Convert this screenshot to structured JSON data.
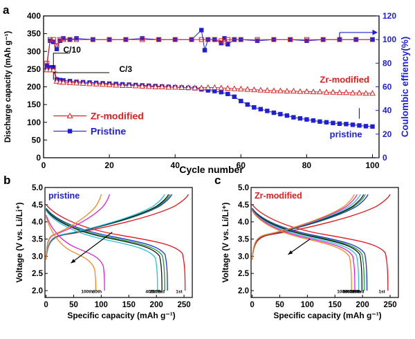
{
  "chart_data": [
    {
      "panel": "a",
      "type": "scatter",
      "xlabel": "Cycle number",
      "ylabel": "Discharge capacity (mAh g⁻¹)",
      "y2label": "Coulombic effiency(%)",
      "xlim": [
        0,
        102
      ],
      "ylim": [
        0,
        400
      ],
      "y2lim": [
        0,
        120
      ],
      "xticks": [
        0,
        20,
        40,
        60,
        80,
        100
      ],
      "yticks": [
        0,
        50,
        100,
        150,
        200,
        250,
        300,
        350,
        400
      ],
      "y2ticks": [
        0,
        20,
        40,
        60,
        80,
        100,
        120
      ],
      "legend_position": "lower-left",
      "legend": [
        {
          "label": "Zr-modified",
          "color": "#e02020",
          "marker": "open-triangle"
        },
        {
          "label": "Pristine",
          "color": "#1f1fd6",
          "marker": "filled-square"
        }
      ],
      "annotations": [
        "C/10",
        "C/3",
        "Zr-modified",
        "pristine"
      ],
      "series": [
        {
          "name": "Zr-modified",
          "kind": "discharge",
          "axis": "left",
          "color": "#e02020",
          "marker": "open-triangle",
          "x": [
            1,
            2,
            3,
            4,
            5,
            6,
            8,
            10,
            12,
            14,
            16,
            18,
            20,
            22,
            24,
            26,
            28,
            30,
            32,
            34,
            36,
            38,
            40,
            42,
            44,
            46,
            48,
            50,
            52,
            54,
            56,
            58,
            60,
            62,
            64,
            66,
            68,
            70,
            72,
            74,
            76,
            78,
            80,
            82,
            84,
            86,
            88,
            90,
            92,
            94,
            96,
            98,
            100
          ],
          "y": [
            248,
            248,
            248,
            216,
            214,
            213,
            212,
            211,
            210,
            209,
            208,
            207,
            206,
            205,
            204,
            204,
            203,
            202,
            201,
            200,
            200,
            199,
            199,
            198,
            198,
            197,
            197,
            198,
            198,
            197,
            196,
            195,
            194,
            193,
            192,
            191,
            190,
            189,
            189,
            188,
            188,
            187,
            187,
            186,
            186,
            185,
            185,
            184,
            184,
            183,
            183,
            182,
            182
          ]
        },
        {
          "name": "Pristine",
          "kind": "discharge",
          "axis": "left",
          "color": "#1f1fd6",
          "marker": "filled-square",
          "x": [
            1,
            2,
            3,
            4,
            5,
            6,
            8,
            10,
            12,
            14,
            16,
            18,
            20,
            22,
            24,
            26,
            28,
            30,
            32,
            34,
            36,
            38,
            40,
            42,
            44,
            46,
            48,
            50,
            52,
            54,
            56,
            58,
            60,
            62,
            64,
            66,
            68,
            70,
            72,
            74,
            76,
            78,
            80,
            82,
            84,
            86,
            88,
            90,
            92,
            94,
            96,
            98,
            100
          ],
          "y": [
            255,
            255,
            255,
            221,
            219,
            218,
            216,
            214,
            213,
            212,
            211,
            210,
            209,
            208,
            207,
            206,
            205,
            204,
            203,
            202,
            201,
            200,
            199,
            198,
            197,
            196,
            193,
            190,
            188,
            185,
            180,
            172,
            160,
            150,
            142,
            137,
            132,
            127,
            123,
            119,
            114,
            111,
            108,
            105,
            102,
            100,
            98,
            96,
            95,
            93,
            91,
            89,
            88
          ]
        },
        {
          "name": "Zr-modified",
          "kind": "coulombic_efficiency",
          "axis": "right",
          "color": "#e02020",
          "marker": "open-square",
          "x": [
            1,
            2,
            3,
            4,
            5,
            6,
            8,
            10,
            15,
            20,
            25,
            30,
            35,
            40,
            45,
            48,
            50,
            52,
            54,
            55,
            56,
            58,
            60,
            65,
            70,
            75,
            80,
            85,
            90,
            95,
            100
          ],
          "y": [
            80,
            100,
            100,
            95,
            100,
            100,
            100,
            100,
            100,
            100,
            100,
            100,
            100,
            100,
            100,
            100,
            100,
            100,
            99,
            98,
            100,
            100,
            100,
            100,
            100,
            100,
            100,
            100,
            100,
            100,
            100
          ]
        },
        {
          "name": "Pristine",
          "kind": "coulombic_efficiency",
          "axis": "right",
          "color": "#1f1fd6",
          "marker": "filled-square",
          "x": [
            1,
            2,
            3,
            4,
            5,
            6,
            8,
            10,
            15,
            20,
            25,
            30,
            35,
            40,
            45,
            48,
            49,
            50,
            52,
            54,
            55,
            56,
            58,
            60,
            65,
            70,
            75,
            80,
            85,
            90,
            95,
            100
          ],
          "y": [
            78,
            99,
            98,
            92,
            99,
            101,
            100,
            101,
            100,
            100,
            100,
            101,
            100,
            100,
            100,
            108,
            91,
            100,
            100,
            97,
            101,
            96,
            100,
            100,
            99,
            100,
            100,
            99,
            100,
            100,
            100,
            100
          ]
        }
      ]
    },
    {
      "panel": "b",
      "type": "line",
      "label": "pristine",
      "xlabel": "Specific capacity (mAh g⁻¹)",
      "ylabel": "Voltage (V vs. Li/Li⁺)",
      "xlim": [
        -2,
        265
      ],
      "ylim": [
        1.8,
        5.0
      ],
      "xticks": [
        0,
        50,
        100,
        150,
        200,
        250
      ],
      "yticks": [
        2.0,
        2.5,
        3.0,
        3.5,
        4.0,
        4.5,
        5.0
      ],
      "curve_labels": [
        "100th",
        "80th",
        "40th",
        "20th",
        "10th",
        "3rd",
        "1st"
      ],
      "curves": [
        {
          "cycle": "1st",
          "color": "#e8141b",
          "charge_cap": 258,
          "discharge_cap": 252,
          "discharge_start": 4.5,
          "knee_v": 3.28
        },
        {
          "cycle": "3rd",
          "color": "#1f2fd6",
          "charge_cap": 228,
          "discharge_cap": 220,
          "discharge_start": 4.4,
          "knee_v": 3.25
        },
        {
          "cycle": "10th",
          "color": "#1a9a35",
          "charge_cap": 225,
          "discharge_cap": 215,
          "discharge_start": 4.38,
          "knee_v": 3.22
        },
        {
          "cycle": "20th",
          "color": "#111111",
          "charge_cap": 222,
          "discharge_cap": 210,
          "discharge_start": 4.36,
          "knee_v": 3.2
        },
        {
          "cycle": "40th",
          "color": "#20c4d8",
          "charge_cap": 215,
          "discharge_cap": 202,
          "discharge_start": 4.33,
          "knee_v": 3.15
        },
        {
          "cycle": "80th",
          "color": "#e020d6",
          "charge_cap": 115,
          "discharge_cap": 106,
          "discharge_start": 4.2,
          "knee_v": 2.9
        },
        {
          "cycle": "100th",
          "color": "#f08a1a",
          "charge_cap": 100,
          "discharge_cap": 90,
          "discharge_start": 4.15,
          "knee_v": 2.8
        }
      ]
    },
    {
      "panel": "c",
      "type": "line",
      "label": "Zr-modified",
      "xlabel": "Specific capacity (mAh g⁻¹)",
      "ylabel": "Voltage (V vs. Li/Li⁺)",
      "xlim": [
        -2,
        265
      ],
      "ylim": [
        1.8,
        5.0
      ],
      "xticks": [
        0,
        50,
        100,
        150,
        200,
        250
      ],
      "yticks": [
        2.0,
        2.5,
        3.0,
        3.5,
        4.0,
        4.5,
        5.0
      ],
      "curve_labels": [
        "100th",
        "80th",
        "40th",
        "20th",
        "10th",
        "3rd",
        "1st"
      ],
      "curves": [
        {
          "cycle": "1st",
          "color": "#e8141b",
          "charge_cap": 250,
          "discharge_cap": 246,
          "discharge_start": 4.5,
          "knee_v": 3.3
        },
        {
          "cycle": "3rd",
          "color": "#1f2fd6",
          "charge_cap": 210,
          "discharge_cap": 208,
          "discharge_start": 4.4,
          "knee_v": 3.28
        },
        {
          "cycle": "10th",
          "color": "#1a9a35",
          "charge_cap": 205,
          "discharge_cap": 203,
          "discharge_start": 4.39,
          "knee_v": 3.26
        },
        {
          "cycle": "20th",
          "color": "#111111",
          "charge_cap": 202,
          "discharge_cap": 199,
          "discharge_start": 4.38,
          "knee_v": 3.25
        },
        {
          "cycle": "40th",
          "color": "#20c4d8",
          "charge_cap": 196,
          "discharge_cap": 193,
          "discharge_start": 4.36,
          "knee_v": 3.22
        },
        {
          "cycle": "80th",
          "color": "#e020d6",
          "charge_cap": 190,
          "discharge_cap": 186,
          "discharge_start": 4.34,
          "knee_v": 3.2
        },
        {
          "cycle": "100th",
          "color": "#f08a1a",
          "charge_cap": 185,
          "discharge_cap": 180,
          "discharge_start": 4.32,
          "knee_v": 3.18
        }
      ]
    }
  ],
  "panel_letters": [
    "a",
    "b",
    "c"
  ]
}
